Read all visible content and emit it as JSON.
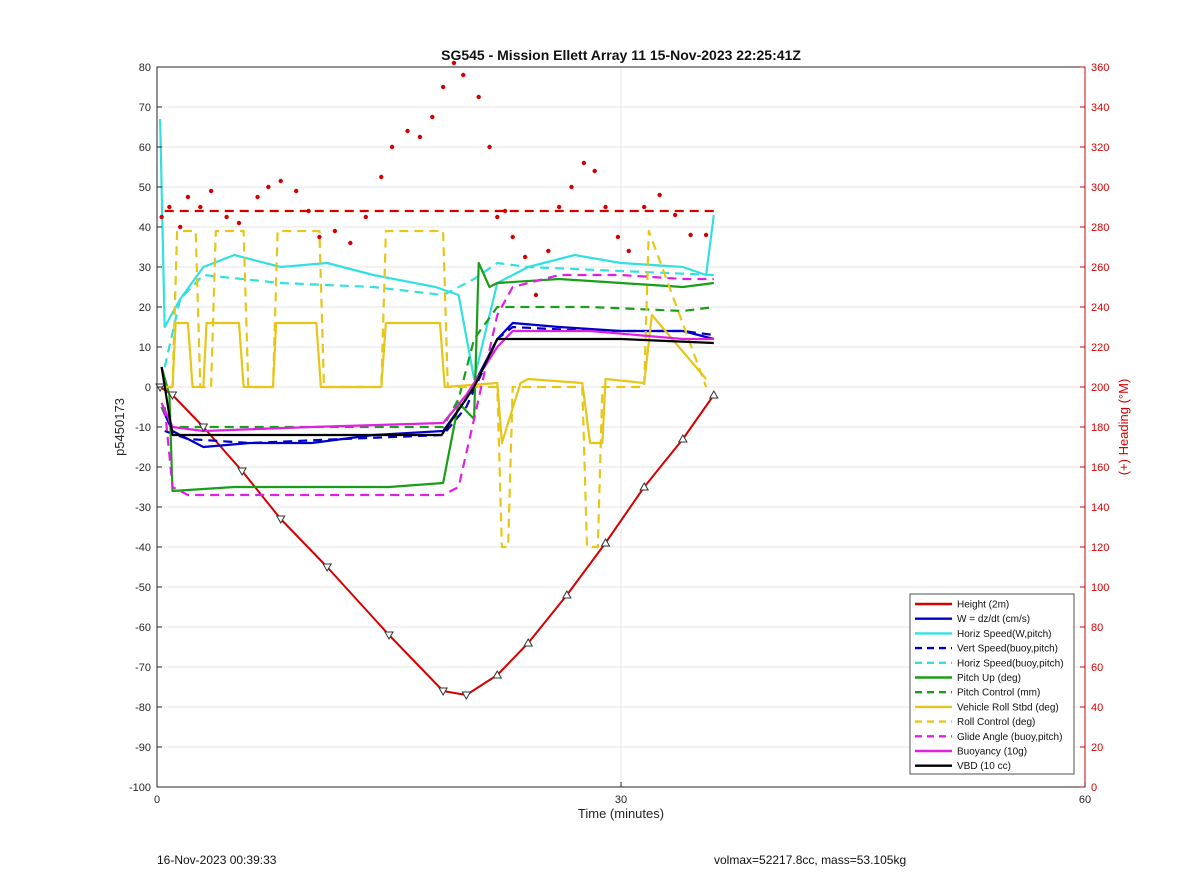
{
  "chart_data": {
    "type": "line",
    "title": "SG545 - Mission Ellett Array 11 15-Nov-2023 22:25:41Z",
    "xlabel": "Time (minutes)",
    "ylabel": "p5450173",
    "y2label": "(+) Heading (°M)",
    "xlim": [
      0,
      60
    ],
    "ylim": [
      -100,
      80
    ],
    "y2lim": [
      0,
      360
    ],
    "x_ticks": [
      "0",
      "30",
      "60"
    ],
    "y_ticks": [
      "80",
      "70",
      "60",
      "50",
      "40",
      "30",
      "20",
      "10",
      "0",
      "-10",
      "-20",
      "-30",
      "-40",
      "-50",
      "-60",
      "-70",
      "-80",
      "-90",
      "-100"
    ],
    "y2_ticks": [
      "360",
      "340",
      "320",
      "300",
      "280",
      "260",
      "240",
      "220",
      "200",
      "180",
      "160",
      "140",
      "120",
      "100",
      "80",
      "60",
      "40",
      "20",
      "0"
    ],
    "grid": true,
    "legend_position": "bottom-right",
    "colors": {
      "height": "#d40000",
      "w": "#0000c8",
      "horiz_speed": "#33e0e0",
      "pitch": "#1a9e1a",
      "roll": "#e6c619",
      "glide": "#e020e0",
      "buoyancy": "#e020e0",
      "vbd": "#000000",
      "heading": "#d40000"
    },
    "series": [
      {
        "name": "Height (2m)",
        "style": "solid",
        "color": "#d40000",
        "x": [
          0.2,
          1.0,
          3.0,
          5.5,
          8.0,
          11.0,
          15.0,
          18.5,
          20.0,
          22.0,
          24.0,
          26.5,
          29.0,
          31.5,
          34.0,
          36.0
        ],
        "y": [
          0,
          -2,
          -10,
          -21,
          -33,
          -45,
          -62,
          -76,
          -77,
          -72,
          -64,
          -52,
          -39,
          -25,
          -13,
          -2
        ]
      },
      {
        "name": "W = dz/dt (cm/s)",
        "style": "solid",
        "color": "#0000c8",
        "x": [
          0.3,
          1.0,
          3.0,
          6.0,
          10.0,
          14.0,
          18.5,
          20.0,
          22.0,
          23.0,
          26.0,
          30.0,
          34.0,
          36.0
        ],
        "y": [
          -5,
          -11,
          -15,
          -14,
          -14,
          -12,
          -11,
          -3,
          12,
          16,
          15,
          14,
          14,
          12
        ]
      },
      {
        "name": "Horiz Speed(W,pitch)",
        "style": "solid",
        "color": "#33e0e0",
        "x": [
          0.2,
          0.5,
          1.5,
          3.0,
          5.0,
          8.0,
          11.0,
          14.0,
          18.0,
          19.5,
          20.5,
          22.0,
          24.0,
          27.0,
          30.0,
          34.0,
          35.5,
          36.0
        ],
        "y": [
          67,
          15,
          22,
          30,
          33,
          30,
          31,
          28,
          25,
          23,
          2,
          26,
          30,
          33,
          31,
          30,
          28,
          43
        ]
      },
      {
        "name": "Vert Speed(buoy,pitch)",
        "style": "dashed",
        "color": "#0000c8",
        "x": [
          0.5,
          2.0,
          6.0,
          12.0,
          18.5,
          20.0,
          22.0,
          23.0,
          28.0,
          34.0,
          36.0
        ],
        "y": [
          -11,
          -13,
          -14,
          -13,
          -12,
          -5,
          12,
          15,
          14,
          14,
          13
        ]
      },
      {
        "name": "Horiz Speed(buoy,pitch)",
        "style": "dashed",
        "color": "#33e0e0",
        "x": [
          0.5,
          1.5,
          3.0,
          8.0,
          14.0,
          18.5,
          20.5,
          22.0,
          24.0,
          30.0,
          36.0
        ],
        "y": [
          5,
          22,
          28,
          26,
          25,
          23,
          27,
          31,
          30,
          29,
          28
        ]
      },
      {
        "name": "Pitch Up (deg)",
        "style": "solid",
        "color": "#1a9e1a",
        "x": [
          0.3,
          0.8,
          1.0,
          5.0,
          10.0,
          15.0,
          18.5,
          19.5,
          20.5,
          20.8,
          21.5,
          22.0,
          26.0,
          30.0,
          34.0,
          36.0
        ],
        "y": [
          5,
          -2,
          -26,
          -25,
          -25,
          -25,
          -24,
          -4,
          -8,
          31,
          25,
          26,
          27,
          26,
          25,
          26
        ]
      },
      {
        "name": "Pitch Control (mm)",
        "style": "dashed",
        "color": "#1a9e1a",
        "x": [
          0.3,
          1.0,
          5.0,
          12.0,
          18.5,
          19.5,
          20.5,
          22.0,
          28.0,
          34.0,
          36.0
        ],
        "y": [
          -5,
          -10,
          -10,
          -10,
          -10,
          -3,
          12,
          20,
          20,
          19,
          20
        ]
      },
      {
        "name": "Vehicle Roll Stbd (deg)",
        "style": "solid",
        "color": "#e6c619",
        "x": [
          0.5,
          1.0,
          1.2,
          2.0,
          2.3,
          3.0,
          3.2,
          5.3,
          5.6,
          7.5,
          7.7,
          10.3,
          10.6,
          14.5,
          14.8,
          18.3,
          18.6,
          22.0,
          22.3,
          23.5,
          24.0,
          27.5,
          28.0,
          28.8,
          29.0,
          31.5,
          32.0,
          35.5
        ],
        "y": [
          0,
          0,
          16,
          16,
          0,
          0,
          16,
          16,
          0,
          0,
          16,
          16,
          0,
          0,
          16,
          16,
          0,
          1,
          -14,
          1,
          2,
          1,
          -14,
          -14,
          2,
          1,
          18,
          2
        ]
      },
      {
        "name": "Roll Control (deg)",
        "style": "dashed",
        "color": "#e6c619",
        "x": [
          0.8,
          1.0,
          1.3,
          2.5,
          2.8,
          3.5,
          3.8,
          5.6,
          5.9,
          7.5,
          7.8,
          10.5,
          10.8,
          14.5,
          14.8,
          18.5,
          18.8,
          22.0,
          22.3,
          22.7,
          23.0,
          27.5,
          27.8,
          28.5,
          28.8,
          31.5,
          31.8,
          35.5
        ],
        "y": [
          0,
          0,
          39,
          39,
          0,
          0,
          39,
          39,
          0,
          0,
          39,
          39,
          0,
          0,
          39,
          39,
          0,
          0,
          -40,
          -40,
          0,
          0,
          -40,
          -40,
          0,
          0,
          39,
          0
        ]
      },
      {
        "name": "Glide Angle (buoy,pitch)",
        "style": "dashed",
        "color": "#e020e0",
        "x": [
          0.5,
          1.0,
          2.0,
          6.0,
          12.0,
          18.5,
          19.5,
          20.5,
          22.0,
          23.0,
          26.0,
          30.0,
          34.0,
          36.0
        ],
        "y": [
          -5,
          -25,
          -27,
          -27,
          -27,
          -27,
          -25,
          -8,
          18,
          25,
          28,
          28,
          27,
          27
        ]
      },
      {
        "name": "Buoyancy (10g)",
        "style": "solid",
        "color": "#e020e0",
        "x": [
          0.3,
          1.0,
          3.0,
          10.0,
          18.5,
          20.0,
          22.0,
          23.0,
          28.0,
          34.0,
          36.0
        ],
        "y": [
          -4,
          -10,
          -11,
          -10,
          -9,
          -2,
          10,
          14,
          14,
          12,
          12
        ]
      },
      {
        "name": "VBD (10 cc)",
        "style": "solid",
        "color": "#000000",
        "x": [
          0.3,
          1.0,
          1.5,
          6.0,
          12.0,
          18.4,
          20.5,
          22.0,
          24.0,
          30.0,
          36.0
        ],
        "y": [
          5,
          -12,
          -12,
          -12,
          -12,
          -12,
          0,
          12,
          12,
          12,
          11
        ]
      }
    ],
    "heading": {
      "style": "dots",
      "color": "#d40000",
      "axis": "right",
      "x": [
        0.3,
        0.8,
        1.5,
        2.0,
        2.8,
        3.5,
        4.5,
        5.3,
        6.5,
        7.2,
        8.0,
        9.0,
        9.8,
        10.5,
        11.5,
        12.5,
        13.5,
        14.5,
        15.2,
        16.2,
        17.0,
        17.8,
        18.5,
        19.2,
        19.8,
        20.8,
        21.5,
        22.0,
        22.5,
        23.0,
        23.8,
        24.5,
        25.3,
        26.0,
        26.8,
        27.6,
        28.3,
        29.0,
        29.8,
        30.5,
        31.5,
        32.5,
        33.5,
        34.5,
        35.5
      ],
      "y": [
        285,
        290,
        280,
        295,
        290,
        298,
        285,
        282,
        295,
        300,
        303,
        298,
        288,
        275,
        278,
        272,
        285,
        305,
        320,
        328,
        325,
        335,
        350,
        362,
        356,
        345,
        320,
        285,
        288,
        275,
        265,
        246,
        268,
        290,
        300,
        312,
        308,
        290,
        275,
        268,
        290,
        296,
        286,
        276,
        276
      ]
    },
    "reference_line": {
      "name": "",
      "style": "dashed",
      "color": "#d40000",
      "axis": "right",
      "y": 288,
      "x": [
        0.5,
        36.0
      ]
    },
    "annotations": []
  },
  "footer": {
    "left": "16-Nov-2023 00:39:33",
    "right": "volmax=52217.8cc, mass=53.105kg"
  }
}
